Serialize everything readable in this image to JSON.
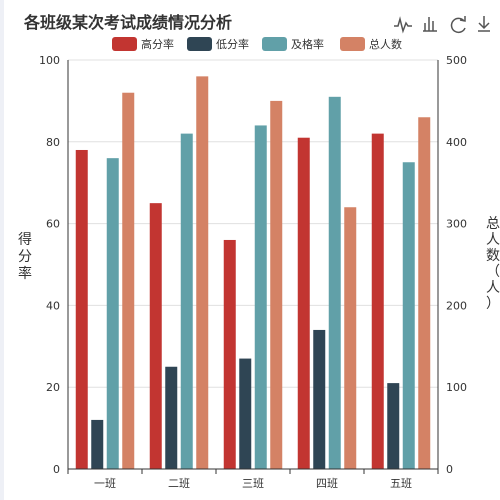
{
  "chart_data": {
    "type": "bar",
    "title": "各班级某次考试成绩情况分析",
    "categories": [
      "一班",
      "二班",
      "三班",
      "四班",
      "五班"
    ],
    "series": [
      {
        "name": "高分率",
        "axis": "left",
        "color": "#c23531",
        "values": [
          78,
          65,
          56,
          81,
          82
        ]
      },
      {
        "name": "低分率",
        "axis": "left",
        "color": "#2f4554",
        "values": [
          12,
          25,
          27,
          34,
          21
        ]
      },
      {
        "name": "及格率",
        "axis": "left",
        "color": "#61a0a8",
        "values": [
          76,
          82,
          84,
          91,
          75
        ]
      },
      {
        "name": "总人数",
        "axis": "right",
        "color": "#d48265",
        "values": [
          460,
          480,
          450,
          320,
          430
        ]
      }
    ],
    "y_left": {
      "label": "得分率",
      "ylim": [
        0,
        100
      ],
      "ticks": [
        "0",
        "20",
        "40",
        "60",
        "80",
        "100"
      ]
    },
    "y_right": {
      "label": "总人数（人）",
      "ylim": [
        0,
        500
      ],
      "ticks": [
        "0",
        "100",
        "200",
        "300",
        "400",
        "500"
      ]
    },
    "grid": true,
    "legend_position": "top"
  },
  "toolbox": {
    "icons": [
      "line-chart-icon",
      "bar-chart-icon",
      "restore-icon",
      "download-icon"
    ]
  }
}
